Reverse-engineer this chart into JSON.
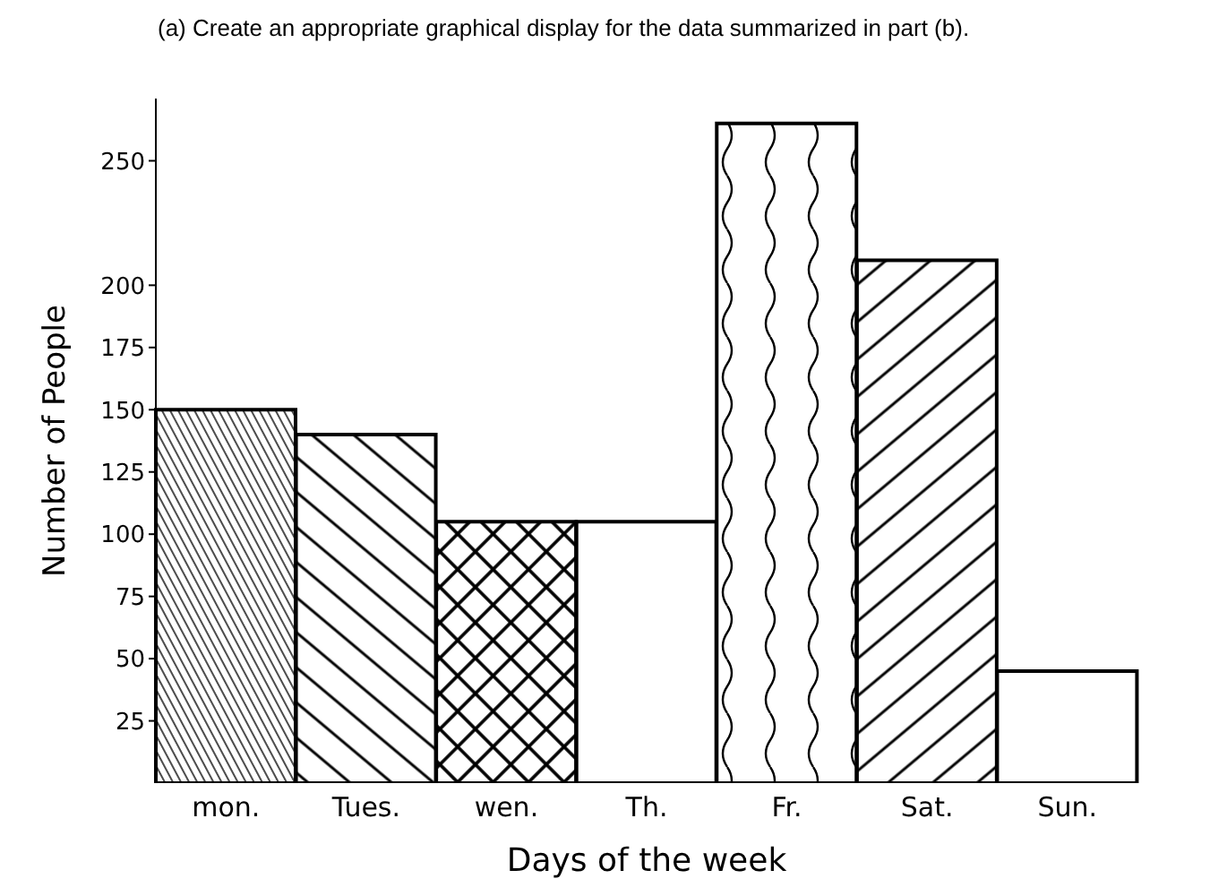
{
  "chart_data": {
    "type": "bar",
    "title": "(a) Create an appropriate graphical display for the data summarized in part (b).",
    "xlabel": "Days of the week",
    "ylabel": "Number of People",
    "categories": [
      "mon.",
      "Tues.",
      "wen.",
      "Th.",
      "Fr.",
      "Sat.",
      "Sun."
    ],
    "values": [
      150,
      140,
      105,
      105,
      265,
      210,
      45
    ],
    "color": "#000000",
    "ylim": [
      0,
      275
    ],
    "yticks": [
      25,
      50,
      75,
      100,
      125,
      150,
      175,
      200,
      250
    ]
  }
}
